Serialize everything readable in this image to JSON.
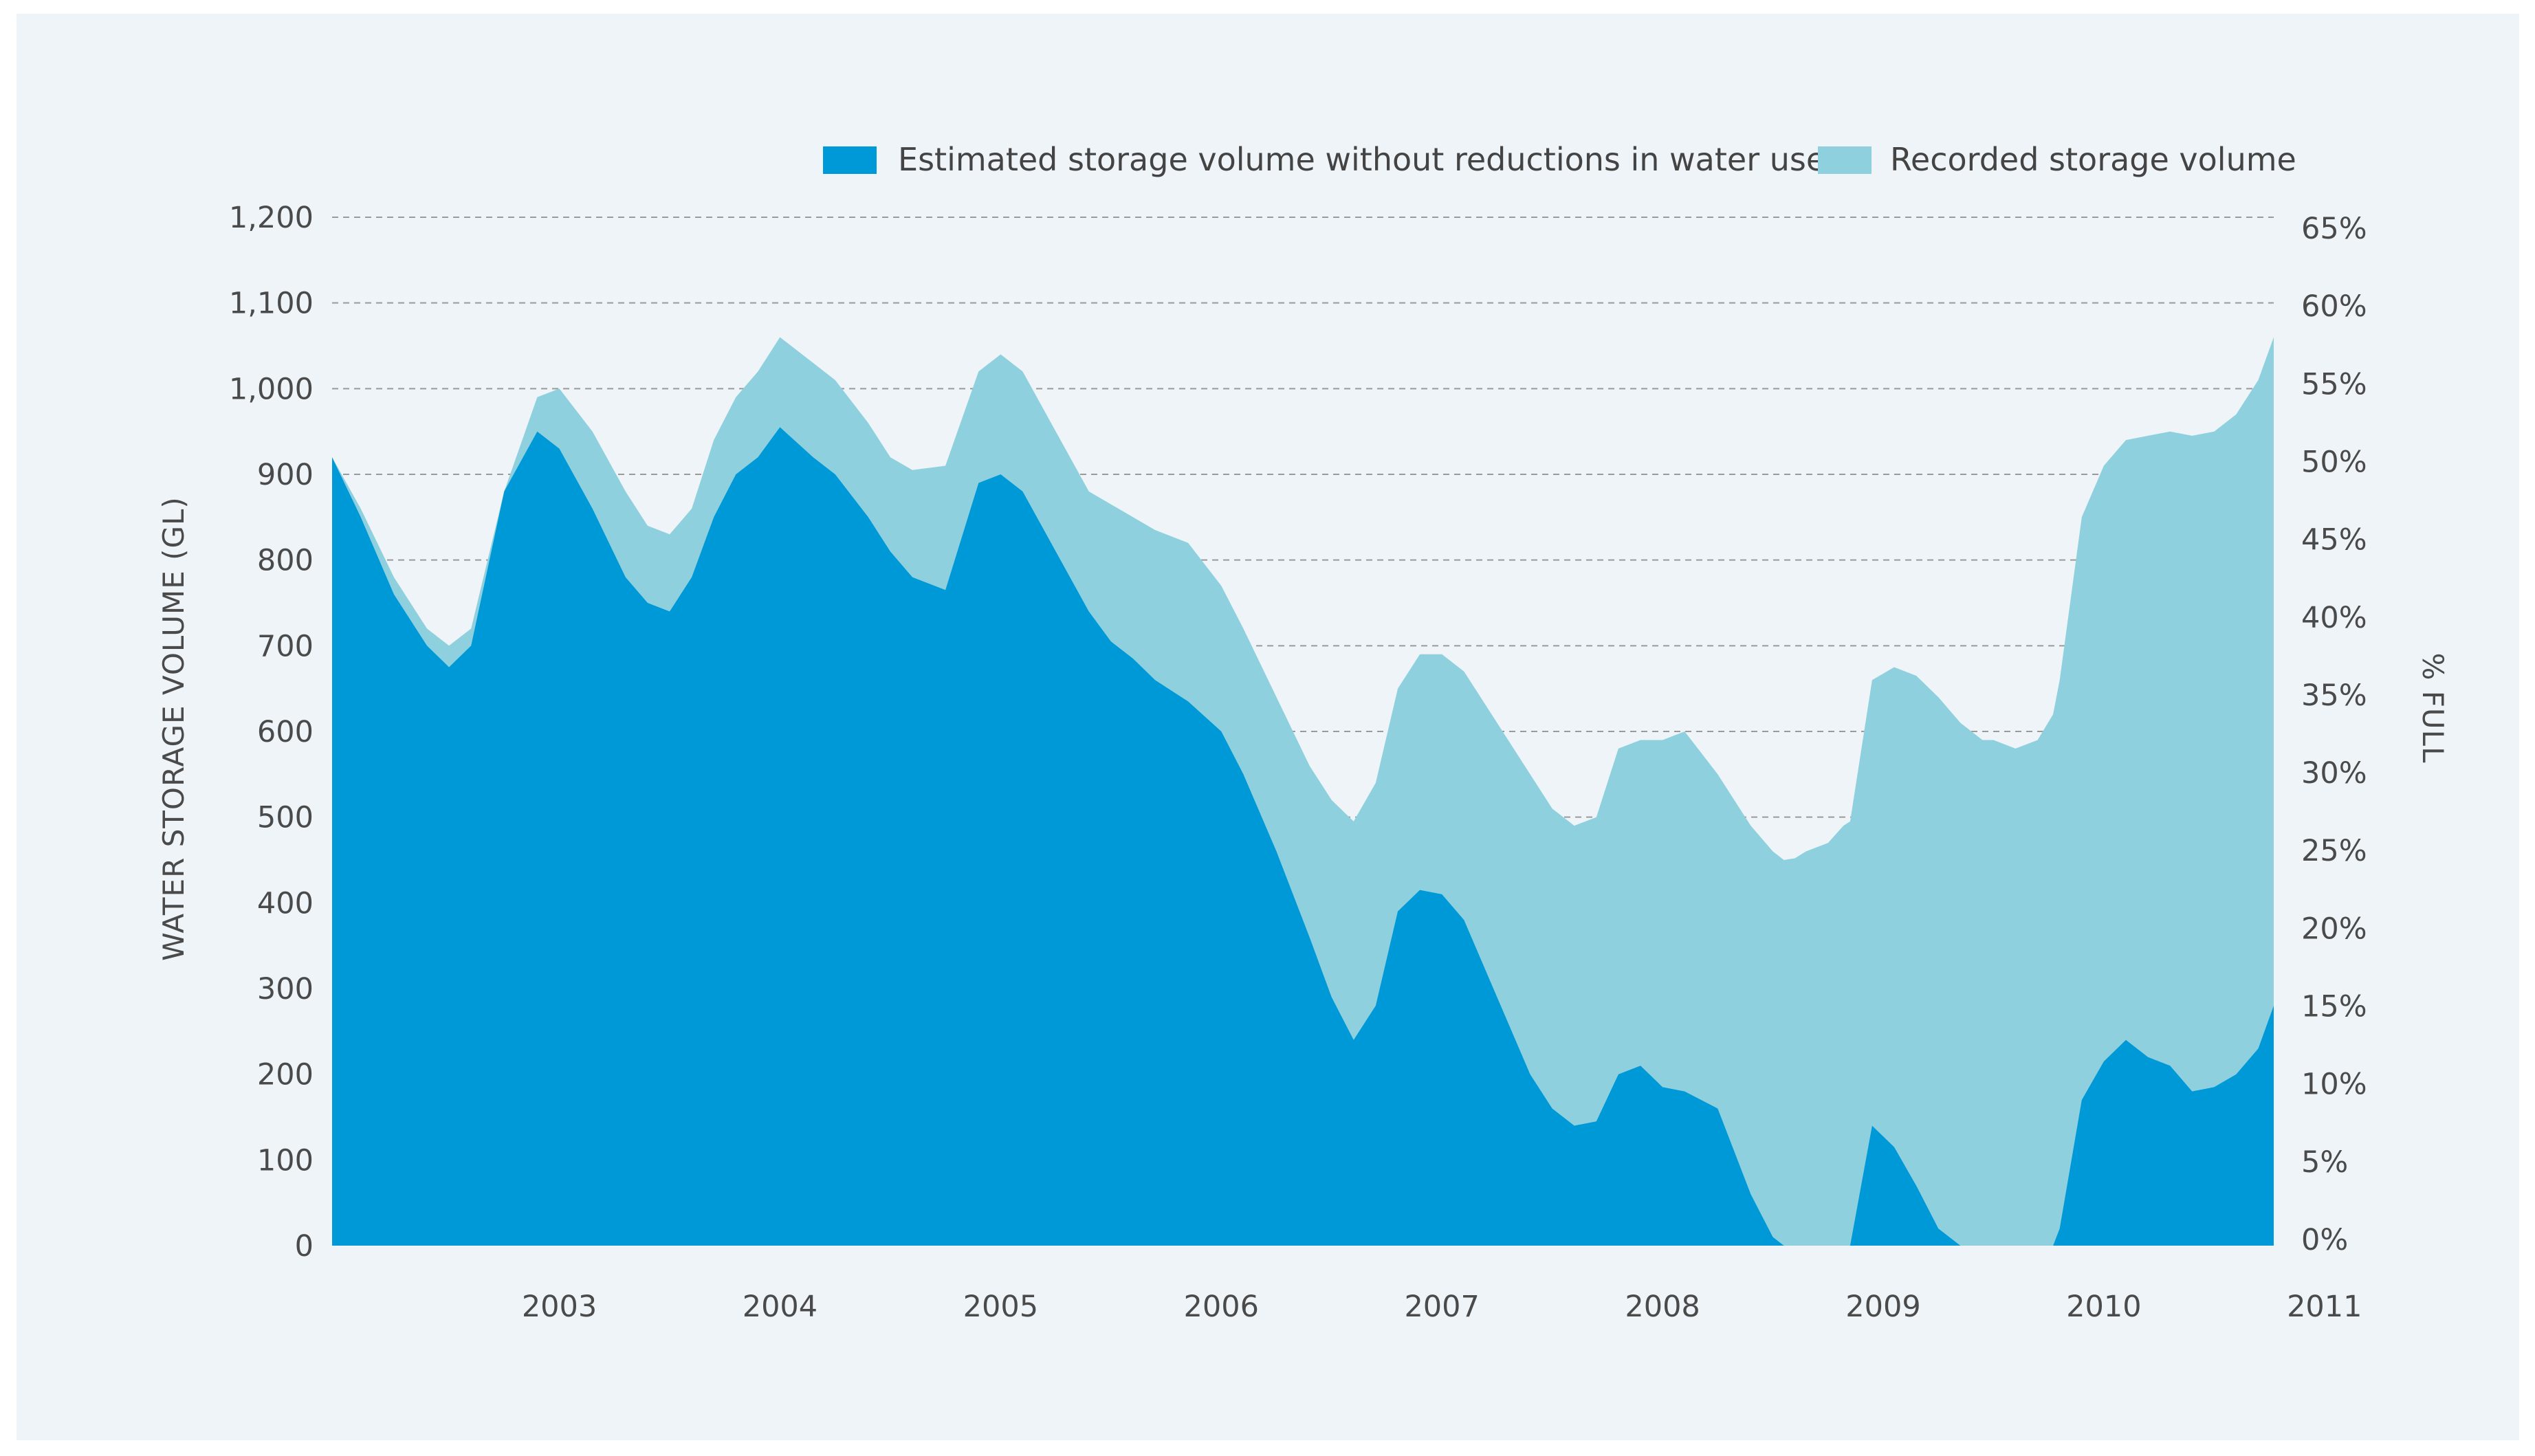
{
  "chart_data": {
    "type": "area",
    "xlabel": "",
    "ylabel": "WATER STORAGE VOLUME (GL)",
    "y2label": "% FULL",
    "ylim": [
      0,
      1200
    ],
    "yticks": [
      "0",
      "100",
      "200",
      "300",
      "400",
      "500",
      "600",
      "700",
      "800",
      "900",
      "1,000",
      "1,100",
      "1,200"
    ],
    "y2ticks": [
      "0%",
      "5%",
      "10%",
      "15%",
      "20%",
      "25%",
      "30%",
      "35%",
      "40%",
      "45%",
      "50%",
      "55%",
      "60%",
      "65%"
    ],
    "xlim": [
      2002.47,
      2011.27
    ],
    "xticks": [
      "2003",
      "2004",
      "2005",
      "2006",
      "2007",
      "2008",
      "2009",
      "2010",
      "2011"
    ],
    "grid": true,
    "legend_position": "top-right",
    "series": [
      {
        "name": "Estimated storage volume without reductions in water use",
        "color": "#0099d8",
        "x": [
          2002.47,
          2002.6,
          2002.75,
          2002.9,
          2003.0,
          2003.1,
          2003.25,
          2003.4,
          2003.5,
          2003.65,
          2003.8,
          2003.9,
          2004.0,
          2004.1,
          2004.2,
          2004.3,
          2004.4,
          2004.5,
          2004.65,
          2004.75,
          2004.9,
          2005.0,
          2005.1,
          2005.25,
          2005.4,
          2005.5,
          2005.6,
          2005.75,
          2005.9,
          2006.0,
          2006.1,
          2006.2,
          2006.35,
          2006.5,
          2006.6,
          2006.75,
          2006.9,
          2007.0,
          2007.1,
          2007.2,
          2007.3,
          2007.4,
          2007.5,
          2007.6,
          2007.75,
          2007.9,
          2008.0,
          2008.1,
          2008.2,
          2008.3,
          2008.4,
          2008.5,
          2008.6,
          2008.75,
          2008.9,
          2009.0,
          2009.05,
          2009.1,
          2009.15,
          2009.25,
          2009.32,
          2009.35,
          2009.45,
          2009.55,
          2009.65,
          2009.75,
          2009.85,
          2009.95,
          2010.0,
          2010.1,
          2010.2,
          2010.27,
          2010.3,
          2010.4,
          2010.5,
          2010.6,
          2010.7,
          2010.8,
          2010.9,
          2011.0,
          2011.1,
          2011.2,
          2011.27
        ],
        "values": [
          920,
          850,
          760,
          700,
          675,
          700,
          880,
          950,
          930,
          860,
          780,
          750,
          740,
          780,
          850,
          900,
          920,
          955,
          920,
          900,
          850,
          810,
          780,
          765,
          890,
          900,
          880,
          810,
          740,
          705,
          685,
          660,
          635,
          600,
          550,
          460,
          360,
          290,
          240,
          280,
          390,
          415,
          410,
          380,
          290,
          200,
          160,
          140,
          145,
          200,
          210,
          185,
          180,
          160,
          60,
          10,
          0,
          0,
          0,
          0,
          0,
          0,
          140,
          115,
          70,
          20,
          0,
          0,
          0,
          0,
          0,
          0,
          20,
          170,
          215,
          240,
          220,
          210,
          180,
          185,
          200,
          230,
          280
        ]
      },
      {
        "name": "Recorded storage volume",
        "color": "#8fd0de",
        "x": [
          2002.47,
          2002.6,
          2002.75,
          2002.9,
          2003.0,
          2003.1,
          2003.25,
          2003.4,
          2003.5,
          2003.65,
          2003.8,
          2003.9,
          2004.0,
          2004.1,
          2004.2,
          2004.3,
          2004.4,
          2004.5,
          2004.65,
          2004.75,
          2004.9,
          2005.0,
          2005.1,
          2005.25,
          2005.4,
          2005.5,
          2005.6,
          2005.75,
          2005.9,
          2006.0,
          2006.1,
          2006.2,
          2006.35,
          2006.5,
          2006.6,
          2006.75,
          2006.9,
          2007.0,
          2007.1,
          2007.2,
          2007.3,
          2007.4,
          2007.5,
          2007.6,
          2007.75,
          2007.9,
          2008.0,
          2008.1,
          2008.2,
          2008.3,
          2008.4,
          2008.5,
          2008.6,
          2008.75,
          2008.9,
          2009.0,
          2009.05,
          2009.1,
          2009.15,
          2009.25,
          2009.32,
          2009.35,
          2009.45,
          2009.55,
          2009.65,
          2009.75,
          2009.85,
          2009.95,
          2010.0,
          2010.1,
          2010.2,
          2010.27,
          2010.3,
          2010.4,
          2010.5,
          2010.6,
          2010.7,
          2010.8,
          2010.9,
          2011.0,
          2011.1,
          2011.2,
          2011.27
        ],
        "values": [
          920,
          860,
          780,
          720,
          700,
          720,
          880,
          990,
          1000,
          950,
          880,
          840,
          830,
          860,
          940,
          990,
          1020,
          1060,
          1030,
          1010,
          960,
          920,
          905,
          910,
          1020,
          1040,
          1020,
          950,
          880,
          865,
          850,
          835,
          820,
          770,
          720,
          640,
          560,
          520,
          495,
          540,
          650,
          690,
          690,
          670,
          610,
          550,
          510,
          490,
          500,
          580,
          590,
          590,
          600,
          550,
          490,
          460,
          450,
          452,
          460,
          470,
          490,
          495,
          660,
          675,
          665,
          640,
          610,
          590,
          590,
          580,
          590,
          620,
          660,
          850,
          910,
          940,
          945,
          950,
          945,
          950,
          970,
          1010,
          1060
        ]
      }
    ]
  }
}
